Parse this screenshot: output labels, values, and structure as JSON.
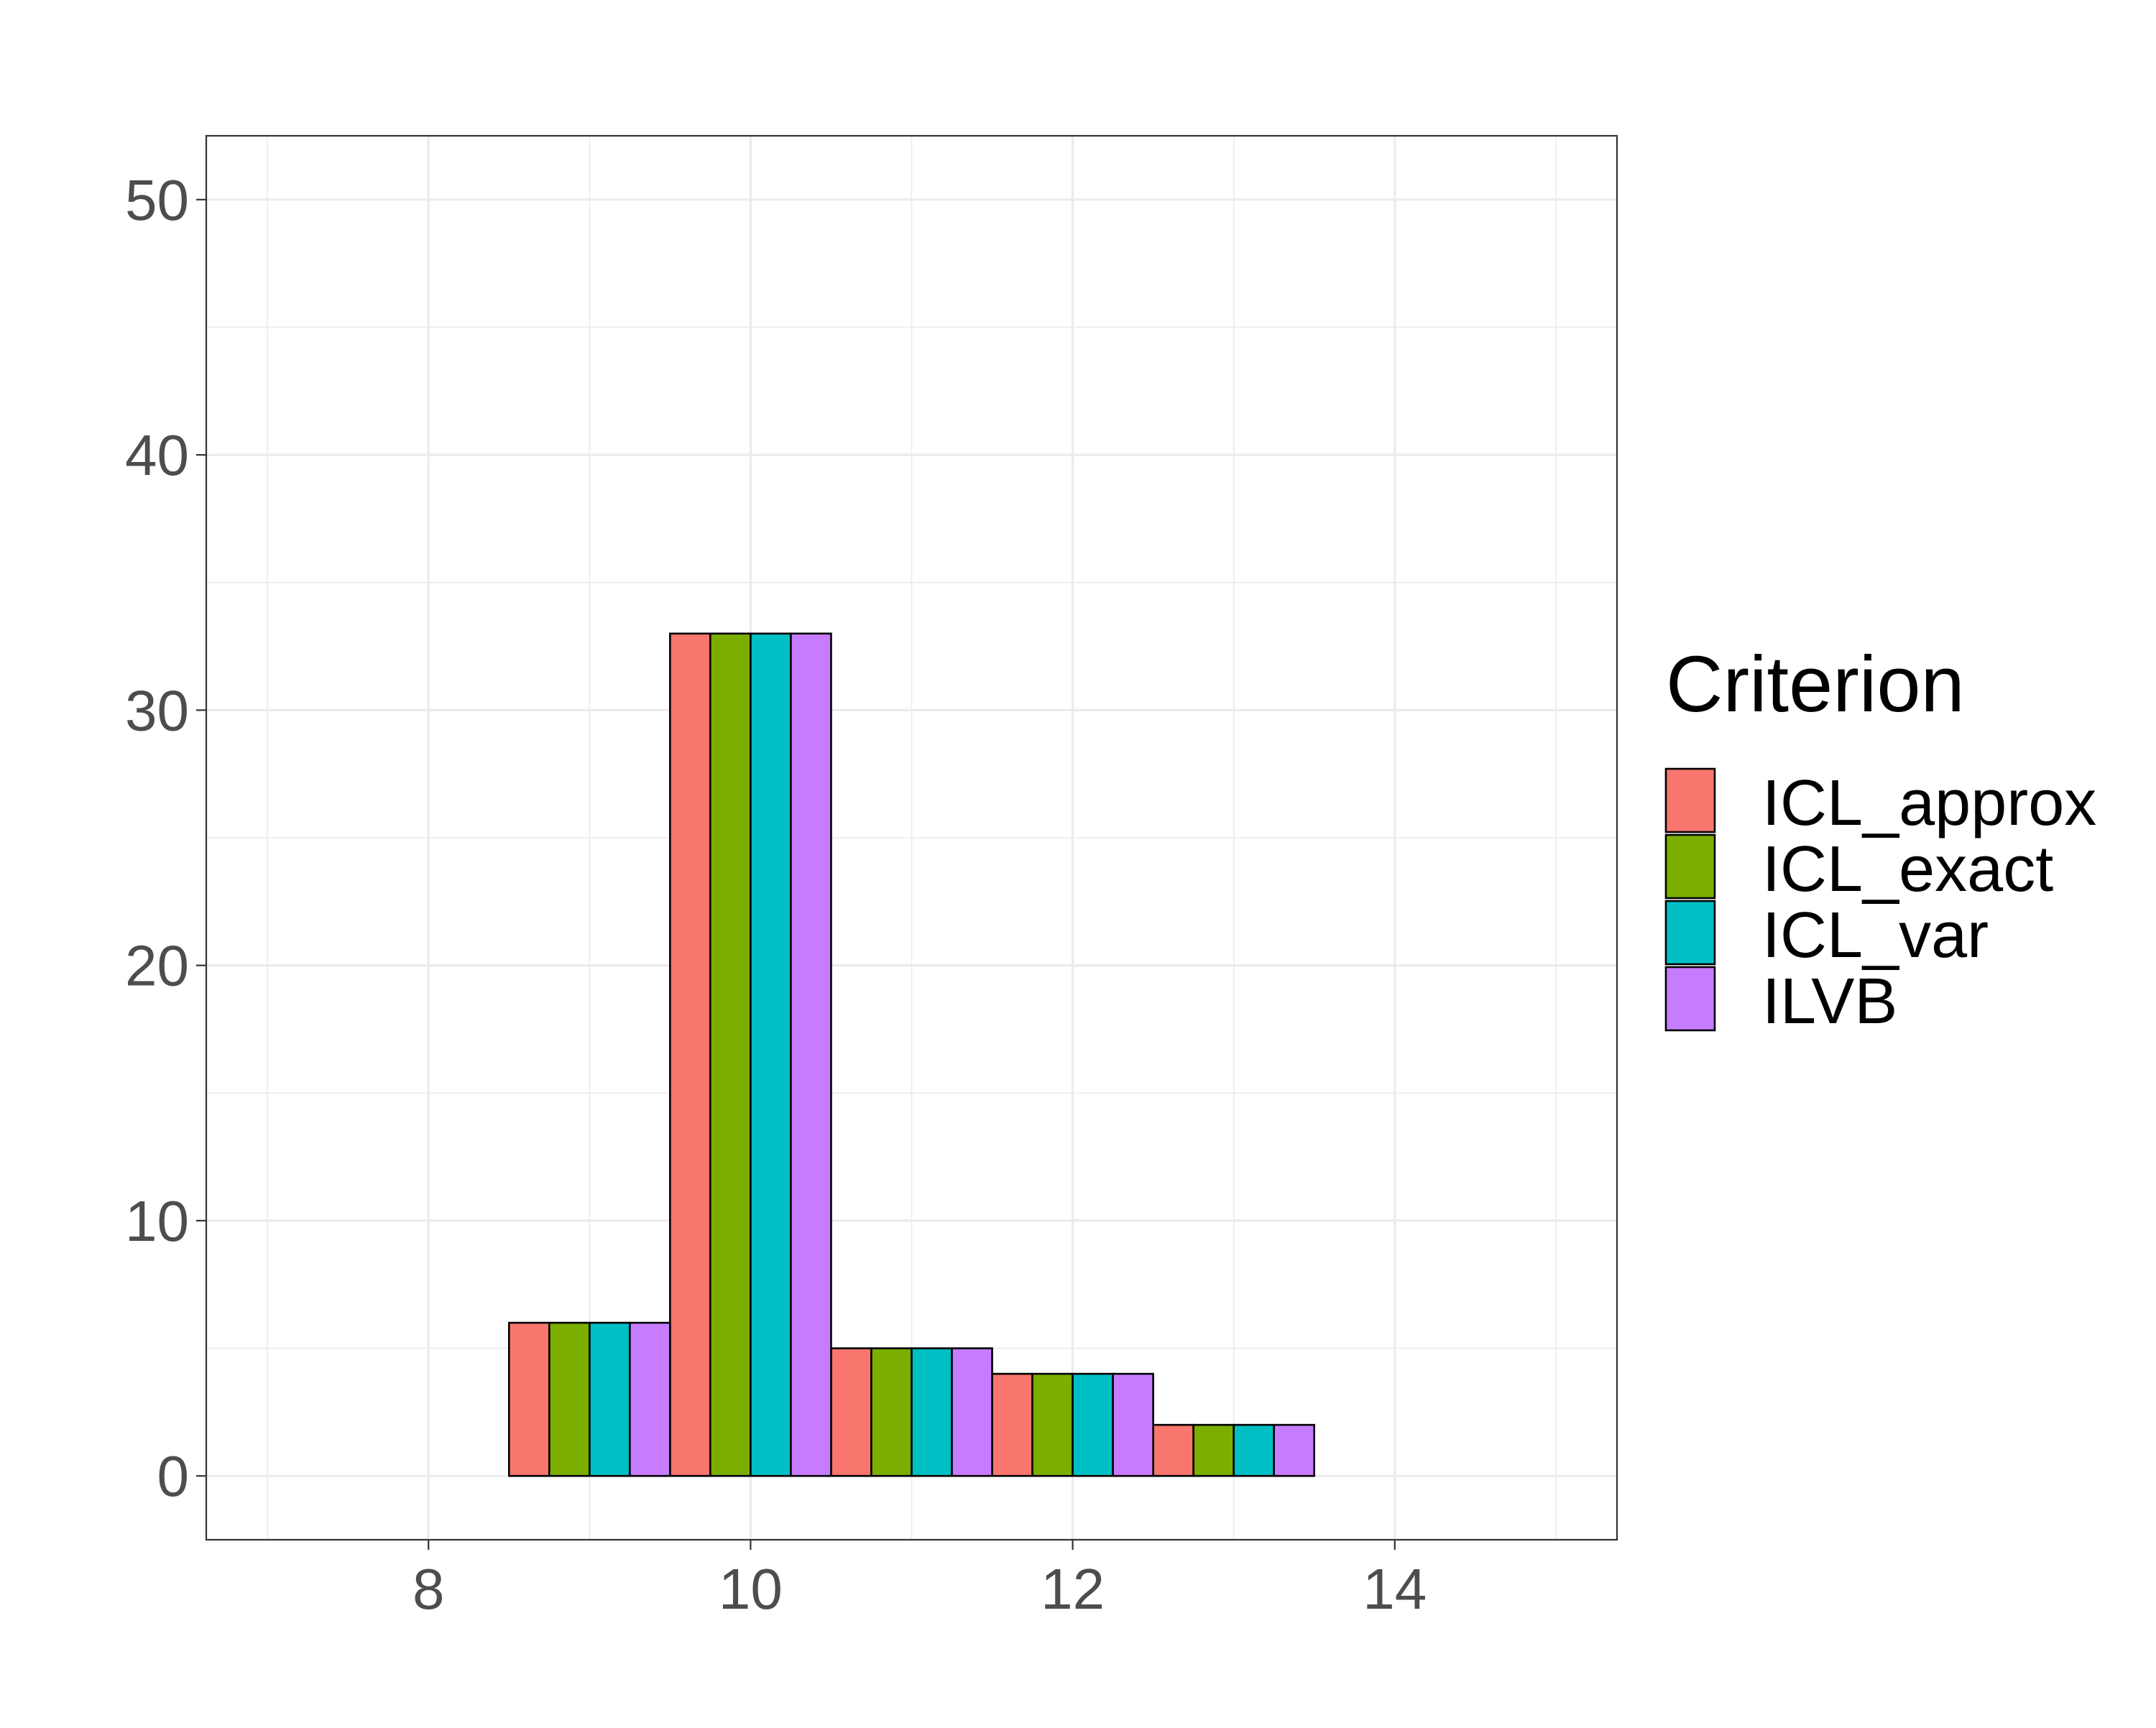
{
  "chart_data": {
    "type": "bar",
    "title": "",
    "xlabel": "",
    "ylabel": "",
    "x": [
      9,
      10,
      11,
      12,
      13
    ],
    "xlim": [
      6.62,
      15.38
    ],
    "ylim": [
      -2.5,
      52.5
    ],
    "x_ticks": [
      8,
      10,
      12,
      14
    ],
    "y_ticks": [
      0,
      10,
      20,
      30,
      40,
      50
    ],
    "grid": true,
    "legend": {
      "title": "Criterion",
      "position": "right"
    },
    "series": [
      {
        "name": "ICL_approx",
        "color": "#F8766D",
        "values": [
          6,
          33,
          5,
          4,
          2
        ]
      },
      {
        "name": "ICL_exact",
        "color": "#7CAE00",
        "values": [
          6,
          33,
          5,
          4,
          2
        ]
      },
      {
        "name": "ICL_var",
        "color": "#00BFC4",
        "values": [
          6,
          33,
          5,
          4,
          2
        ]
      },
      {
        "name": "ILVB",
        "color": "#C77CFF",
        "values": [
          6,
          33,
          5,
          4,
          2
        ]
      }
    ]
  }
}
